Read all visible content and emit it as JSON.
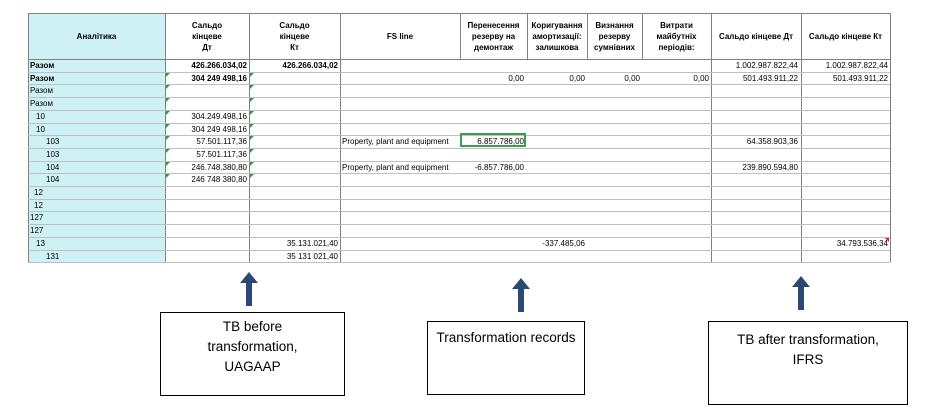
{
  "headers": {
    "analytics": "Аналітика",
    "bal_dt": [
      "Сальдо",
      "кінцеве",
      "Дт"
    ],
    "bal_kt": [
      "Сальдо",
      "кінцеве",
      "Кт"
    ],
    "fs_line": "FS line",
    "transfer": [
      "Перенесення",
      "резерву на",
      "демонтаж"
    ],
    "amort": [
      "Коригування",
      "амортизації:",
      "залишкова"
    ],
    "doubtful": [
      "Визнання",
      "резерву",
      "сумнівних"
    ],
    "future": [
      "Витрати",
      "майбутніх",
      "періодів:"
    ],
    "end_dt": "Сальдо кінцеве Дт",
    "end_kt": "Сальдо кінцеве Кт"
  },
  "rows": [
    {
      "a": "Разом",
      "dt": "426.266.034,02",
      "kt": "426.266.034,02",
      "fs": "",
      "tr": "",
      "am": "",
      "dc": "",
      "fu": "",
      "edt": "1.002.987.822,44",
      "ekt": "1.002.987.822,44",
      "bold": true
    },
    {
      "a": "Разом",
      "dt": "304 249 498,16",
      "kt": "",
      "fs": "",
      "tr": "0,00",
      "am": "0,00",
      "dc": "0,00",
      "fu": "0,00",
      "edt": "501.493.911,22",
      "ekt": "501.493.911,22",
      "bold": true
    },
    {
      "a": "Разом",
      "dt": "",
      "kt": "",
      "fs": "",
      "tr": "",
      "am": "",
      "dc": "",
      "fu": "",
      "edt": "",
      "ekt": "",
      "bold": false
    },
    {
      "a": "Разом",
      "dt": "",
      "kt": "",
      "fs": "",
      "tr": "",
      "am": "",
      "dc": "",
      "fu": "",
      "edt": "",
      "ekt": "",
      "bold": false
    },
    {
      "a": "10",
      "dt": "304.249.498,16",
      "kt": "",
      "fs": "",
      "tr": "",
      "am": "",
      "dc": "",
      "fu": "",
      "edt": "",
      "ekt": "",
      "bold": false
    },
    {
      "a": "10",
      "dt": "304 249 498,16",
      "kt": "",
      "fs": "",
      "tr": "",
      "am": "",
      "dc": "",
      "fu": "",
      "edt": "",
      "ekt": "",
      "bold": false
    },
    {
      "a": "103",
      "dt": "57.501.117,36",
      "kt": "",
      "fs": "Property, plant and equipment",
      "tr": "6.857.786,00",
      "am": "",
      "dc": "",
      "fu": "",
      "edt": "64.358.903,36",
      "ekt": "",
      "bold": false
    },
    {
      "a": "103",
      "dt": "57.501.117,36",
      "kt": "",
      "fs": "",
      "tr": "",
      "am": "",
      "dc": "",
      "fu": "",
      "edt": "",
      "ekt": "",
      "bold": false
    },
    {
      "a": "104",
      "dt": "246.748.380,80",
      "kt": "",
      "fs": "Property, plant and equipment",
      "tr": "-6.857.786,00",
      "am": "",
      "dc": "",
      "fu": "",
      "edt": "239.890.594,80",
      "ekt": "",
      "bold": false
    },
    {
      "a": "104",
      "dt": "246 748 380,80",
      "kt": "",
      "fs": "",
      "tr": "",
      "am": "",
      "dc": "",
      "fu": "",
      "edt": "",
      "ekt": "",
      "bold": false
    },
    {
      "a": "12",
      "dt": "",
      "kt": "",
      "fs": "",
      "tr": "",
      "am": "",
      "dc": "",
      "fu": "",
      "edt": "",
      "ekt": "",
      "bold": false
    },
    {
      "a": "12",
      "dt": "",
      "kt": "",
      "fs": "",
      "tr": "",
      "am": "",
      "dc": "",
      "fu": "",
      "edt": "",
      "ekt": "",
      "bold": false
    },
    {
      "a": "127",
      "dt": "",
      "kt": "",
      "fs": "",
      "tr": "",
      "am": "",
      "dc": "",
      "fu": "",
      "edt": "",
      "ekt": "",
      "bold": false
    },
    {
      "a": "127",
      "dt": "",
      "kt": "",
      "fs": "",
      "tr": "",
      "am": "",
      "dc": "",
      "fu": "",
      "edt": "",
      "ekt": "",
      "bold": false
    },
    {
      "a": "13",
      "dt": "",
      "kt": "35.131.021,40",
      "fs": "",
      "tr": "",
      "am": "-337.485,06",
      "dc": "",
      "fu": "",
      "edt": "",
      "ekt": "34.793.536,34",
      "bold": false
    },
    {
      "a": "131",
      "dt": "",
      "kt": "35 131 021,40",
      "fs": "",
      "tr": "",
      "am": "",
      "dc": "",
      "fu": "",
      "edt": "",
      "ekt": "",
      "bold": false
    }
  ],
  "callouts": {
    "before": "TB before transformation, UAGAAP",
    "records": "Transformation records",
    "after": "TB after transformation, IFRS"
  },
  "colors": {
    "cyan": "#cdf1f4",
    "arrow": "#2a4a73",
    "green": "#2e9e3a"
  }
}
